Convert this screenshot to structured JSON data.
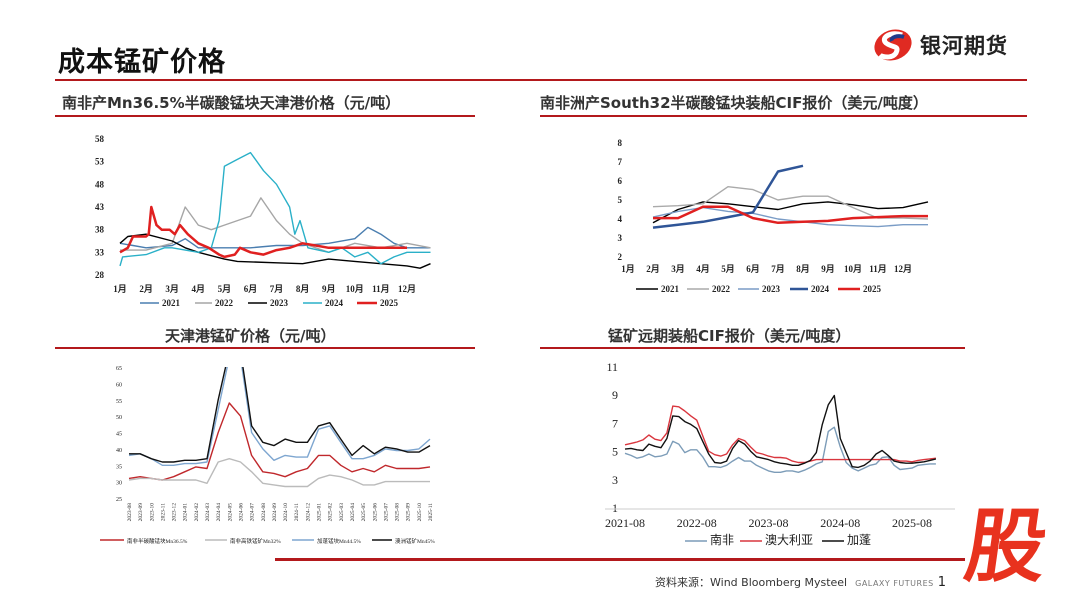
{
  "header": {
    "title": "成本锰矿价格",
    "logo_text": "银河期货"
  },
  "footer": {
    "source": "资料来源：Wind Bloomberg Mysteel",
    "brand": "GALAXY FUTURES",
    "page": "1",
    "stamp": "股"
  },
  "colors": {
    "accent": "#b3191c",
    "stamp": "#e8321e"
  },
  "chart_data": [
    {
      "id": "c1",
      "type": "line",
      "title": "南非产Mn36.5%半碳酸锰块天津港价格（元/吨）",
      "x_unit": "month",
      "xlim": [
        1,
        13
      ],
      "ylim": [
        28,
        58
      ],
      "yticks": [
        28,
        33,
        38,
        43,
        48,
        53,
        58
      ],
      "xticks": [
        {
          "v": 1,
          "l": "1月"
        },
        {
          "v": 2,
          "l": "2月"
        },
        {
          "v": 3,
          "l": "3月"
        },
        {
          "v": 4,
          "l": "4月"
        },
        {
          "v": 5,
          "l": "5月"
        },
        {
          "v": 6,
          "l": "6月"
        },
        {
          "v": 7,
          "l": "7月"
        },
        {
          "v": 8,
          "l": "8月"
        },
        {
          "v": 9,
          "l": "9月"
        },
        {
          "v": 10,
          "l": "10月"
        },
        {
          "v": 11,
          "l": "11月"
        },
        {
          "v": 12,
          "l": "12月"
        }
      ],
      "legend": "bottom",
      "series": [
        {
          "name": "2021",
          "color": "#4a7eb0",
          "x": [
            1,
            1.5,
            2,
            3,
            3.5,
            4,
            5,
            6,
            7,
            8,
            9,
            10,
            10.5,
            11,
            11.5,
            12,
            12.9
          ],
          "y": [
            35,
            34.5,
            34,
            34.5,
            36,
            34,
            34,
            34,
            34.5,
            34.5,
            35,
            36,
            38.5,
            37,
            35,
            34,
            34
          ]
        },
        {
          "name": "2022",
          "color": "#a6a6a6",
          "x": [
            1,
            2,
            3,
            3.5,
            4,
            4.5,
            5,
            5.5,
            6,
            6.4,
            7,
            7.5,
            8,
            9,
            10,
            11,
            12,
            12.9
          ],
          "y": [
            33.5,
            33.5,
            35,
            43,
            39,
            38,
            39,
            40,
            41,
            45,
            40,
            37,
            35,
            33,
            35,
            34,
            35,
            34
          ]
        },
        {
          "name": "2023",
          "color": "#000000",
          "x": [
            1,
            1.3,
            2,
            3,
            3.5,
            4,
            5,
            5.5,
            7,
            8,
            9,
            10,
            11,
            12,
            12.5,
            12.9
          ],
          "y": [
            35,
            36.5,
            37,
            35.5,
            34,
            33,
            31.5,
            31,
            30.7,
            30.5,
            31.5,
            31,
            30.5,
            30,
            29.5,
            30.5
          ]
        },
        {
          "name": "2024",
          "color": "#2ab0c8",
          "x": [
            1,
            1.1,
            2,
            2.7,
            3,
            4,
            4.5,
            4.8,
            5,
            5.5,
            6,
            6.5,
            7,
            7.5,
            7.7,
            7.9,
            8.2,
            9,
            9.5,
            10,
            10.5,
            11,
            11.5,
            12,
            12.9
          ],
          "y": [
            30,
            32,
            32.5,
            34,
            34,
            33,
            34,
            40,
            52,
            53.5,
            55,
            51,
            48,
            43,
            37,
            40,
            34,
            33,
            34,
            32,
            33,
            30.5,
            32,
            33,
            33
          ]
        },
        {
          "name": "2025",
          "color": "#e02020",
          "width": 2.5,
          "x": [
            1,
            1.3,
            1.5,
            2,
            2.1,
            2.2,
            2.4,
            2.6,
            2.9,
            3.1,
            3.3,
            3.6,
            4,
            4.4,
            4.8,
            5,
            5.4,
            5.6,
            6,
            6.5,
            7,
            7.5,
            8,
            8.5,
            9,
            10,
            11,
            12
          ],
          "y": [
            33,
            34,
            36.5,
            36.5,
            37,
            43,
            39,
            38,
            38,
            37,
            39,
            37,
            35,
            34,
            32.5,
            32,
            32.5,
            34,
            33,
            32.5,
            33.5,
            34,
            35,
            34.5,
            34,
            34,
            34,
            34
          ]
        }
      ]
    },
    {
      "id": "c2",
      "type": "line",
      "title": "南非洲产South32半碳酸锰块装船CIF报价（美元/吨度）",
      "x_unit": "month",
      "xlim": [
        1,
        13
      ],
      "ylim": [
        2,
        8
      ],
      "yticks": [
        2,
        3,
        4,
        5,
        6,
        7,
        8
      ],
      "xticks": [
        {
          "v": 1,
          "l": "1月"
        },
        {
          "v": 2,
          "l": "2月"
        },
        {
          "v": 3,
          "l": "3月"
        },
        {
          "v": 4,
          "l": "4月"
        },
        {
          "v": 5,
          "l": "5月"
        },
        {
          "v": 6,
          "l": "6月"
        },
        {
          "v": 7,
          "l": "7月"
        },
        {
          "v": 8,
          "l": "8月"
        },
        {
          "v": 9,
          "l": "9月"
        },
        {
          "v": 10,
          "l": "10月"
        },
        {
          "v": 11,
          "l": "11月"
        },
        {
          "v": 12,
          "l": "12月"
        }
      ],
      "legend": "bottom",
      "series": [
        {
          "name": "2021",
          "color": "#000000",
          "x": [
            2,
            3,
            4,
            5,
            6,
            7,
            8,
            9,
            10,
            11,
            12,
            13
          ],
          "y": [
            3.8,
            4.5,
            4.9,
            4.8,
            4.65,
            4.5,
            4.8,
            4.9,
            4.75,
            4.55,
            4.6,
            4.9
          ]
        },
        {
          "name": "2022",
          "color": "#aaaaaa",
          "x": [
            2,
            3,
            4,
            5,
            6,
            7,
            8,
            9,
            10,
            11,
            12,
            13
          ],
          "y": [
            4.65,
            4.7,
            4.8,
            5.7,
            5.55,
            5.0,
            5.2,
            5.2,
            4.6,
            4.05,
            4.05,
            4.0
          ]
        },
        {
          "name": "2023",
          "color": "#7a9cc6",
          "x": [
            2,
            3,
            4,
            5,
            6,
            7,
            8,
            9,
            10,
            11,
            12,
            13
          ],
          "y": [
            4.1,
            4.4,
            4.6,
            4.4,
            4.3,
            4.0,
            3.85,
            3.7,
            3.65,
            3.6,
            3.7,
            3.7
          ]
        },
        {
          "name": "2024",
          "color": "#2f5597",
          "width": 2.5,
          "x": [
            2,
            3,
            4,
            5,
            6,
            7,
            8
          ],
          "y": [
            3.55,
            3.7,
            3.85,
            4.1,
            4.35,
            6.5,
            6.8
          ]
        },
        {
          "name": "2025",
          "color": "#e02020",
          "width": 2.5,
          "x": [
            2,
            3,
            4,
            5,
            6,
            7,
            8,
            9,
            10,
            11,
            12,
            13
          ],
          "y": [
            4.05,
            4.05,
            4.65,
            4.65,
            4.05,
            3.8,
            3.85,
            3.9,
            4.05,
            4.1,
            4.15,
            4.15
          ]
        }
      ]
    },
    {
      "id": "c3",
      "type": "line",
      "title": "天津港锰矿价格（元/吨）",
      "ylim": [
        25,
        65
      ],
      "yticks": [
        25,
        30,
        35,
        40,
        45,
        50,
        55,
        60,
        65
      ],
      "categories": [
        "2023-08",
        "2023-09",
        "2023-10",
        "2023-11",
        "2023-12",
        "2024-01",
        "2024-02",
        "2024-03",
        "2024-04",
        "2024-05",
        "2024-06",
        "2024-07",
        "2024-08",
        "2024-09",
        "2024-10",
        "2024-11",
        "2024-12",
        "2025-01",
        "2025-02",
        "2025-03",
        "2025-04",
        "2025-05",
        "2025-06",
        "2025-07",
        "2025-08",
        "2025-09",
        "2025-10",
        "2025-11"
      ],
      "legend": "bottom",
      "series": [
        {
          "name": "南非半碳酸锰块Mn36.5%",
          "color": "#c0282c",
          "y": [
            31,
            31.5,
            31,
            30.5,
            31.5,
            33,
            34.5,
            34,
            45,
            54,
            50,
            38,
            33,
            32.5,
            31.5,
            33,
            34,
            38,
            38,
            35,
            33,
            34,
            33,
            35,
            34,
            34,
            34,
            34.5
          ]
        },
        {
          "name": "南非高铁锰矿Mn32%",
          "color": "#bbbbbb",
          "y": [
            30.5,
            31,
            31,
            30.5,
            30.5,
            30.5,
            30.5,
            29.5,
            36,
            37,
            36,
            33,
            29.5,
            29,
            28.5,
            28.5,
            28.5,
            31,
            32,
            31.5,
            30.5,
            29,
            29,
            30,
            30,
            30,
            30,
            30
          ]
        },
        {
          "name": "加蓬锰块Mn44.5%",
          "color": "#7ea6d0",
          "y": [
            38,
            38.5,
            37,
            35,
            35,
            35.5,
            35.5,
            36,
            52,
            68,
            68,
            45,
            40,
            36.5,
            38,
            37.5,
            37.5,
            46,
            47,
            42,
            37,
            37,
            38,
            40,
            39.5,
            39.5,
            40,
            43
          ]
        },
        {
          "name": "澳洲锰矿Mn45%",
          "color": "#111111",
          "y": [
            38.5,
            38.5,
            37,
            36,
            36,
            36.5,
            36.5,
            37,
            55,
            70,
            70,
            47,
            42,
            41,
            43,
            42,
            42,
            47,
            48,
            43,
            38,
            41,
            38.5,
            40.5,
            40,
            39,
            39,
            41
          ]
        }
      ]
    },
    {
      "id": "c4",
      "type": "line",
      "title": "锰矿远期装船CIF报价（美元/吨度）",
      "start": "2021-08",
      "frequency": "monthly",
      "ylim": [
        1,
        11
      ],
      "yticks": [
        1,
        3,
        5,
        7,
        9,
        11
      ],
      "xticks": [
        "2021-08",
        "2022-08",
        "2023-08",
        "2024-08",
        "2025-08"
      ],
      "legend": "bottom",
      "series": [
        {
          "name": "南非",
          "color": "#7c9cb8",
          "y": [
            4.95,
            4.8,
            4.6,
            4.7,
            4.9,
            4.7,
            4.75,
            4.9,
            5.8,
            5.6,
            5.0,
            5.2,
            5.2,
            4.7,
            4.0,
            4.0,
            3.95,
            4.1,
            4.4,
            4.65,
            4.4,
            4.4,
            4.1,
            3.9,
            3.7,
            3.6,
            3.6,
            3.7,
            3.7,
            3.6,
            3.75,
            3.95,
            4.2,
            4.35,
            6.5,
            6.8,
            5.4,
            4.3,
            3.9,
            3.7,
            3.9,
            4.1,
            4.2,
            4.65,
            4.7,
            4.1,
            3.8,
            3.85,
            3.9,
            4.1,
            4.15,
            4.2,
            4.2
          ]
        },
        {
          "name": "澳大利亚",
          "color": "#d9363e",
          "y": [
            5.55,
            5.65,
            5.75,
            5.9,
            6.25,
            5.95,
            5.85,
            6.4,
            8.3,
            8.25,
            7.95,
            7.6,
            7.3,
            6.2,
            5.1,
            4.85,
            4.75,
            4.9,
            5.55,
            6.0,
            5.85,
            5.4,
            5.0,
            4.9,
            4.75,
            4.65,
            4.65,
            4.6,
            4.4,
            4.3,
            4.3,
            4.4,
            4.5,
            4.5,
            4.5,
            4.5,
            4.5,
            4.5,
            4.5,
            4.5,
            4.5,
            4.5,
            4.5,
            4.5,
            4.5,
            4.5,
            4.4,
            4.4,
            4.35,
            4.45,
            4.5,
            4.55,
            4.6
          ]
        },
        {
          "name": "加蓬",
          "color": "#111111",
          "y": [
            5.25,
            5.3,
            5.2,
            5.15,
            5.6,
            5.45,
            5.35,
            6.0,
            7.6,
            7.55,
            7.2,
            7.0,
            6.7,
            5.8,
            4.9,
            4.3,
            4.25,
            4.4,
            5.3,
            5.85,
            5.6,
            5.1,
            4.7,
            4.6,
            4.5,
            4.35,
            4.25,
            4.2,
            4.1,
            4.1,
            4.25,
            4.45,
            5.0,
            7.0,
            8.4,
            9.05,
            6.0,
            5.0,
            4.0,
            3.95,
            4.1,
            4.4,
            4.9,
            5.15,
            4.8,
            4.4,
            4.3,
            4.25,
            4.25,
            4.3,
            4.35,
            4.45,
            4.55
          ]
        }
      ]
    }
  ]
}
